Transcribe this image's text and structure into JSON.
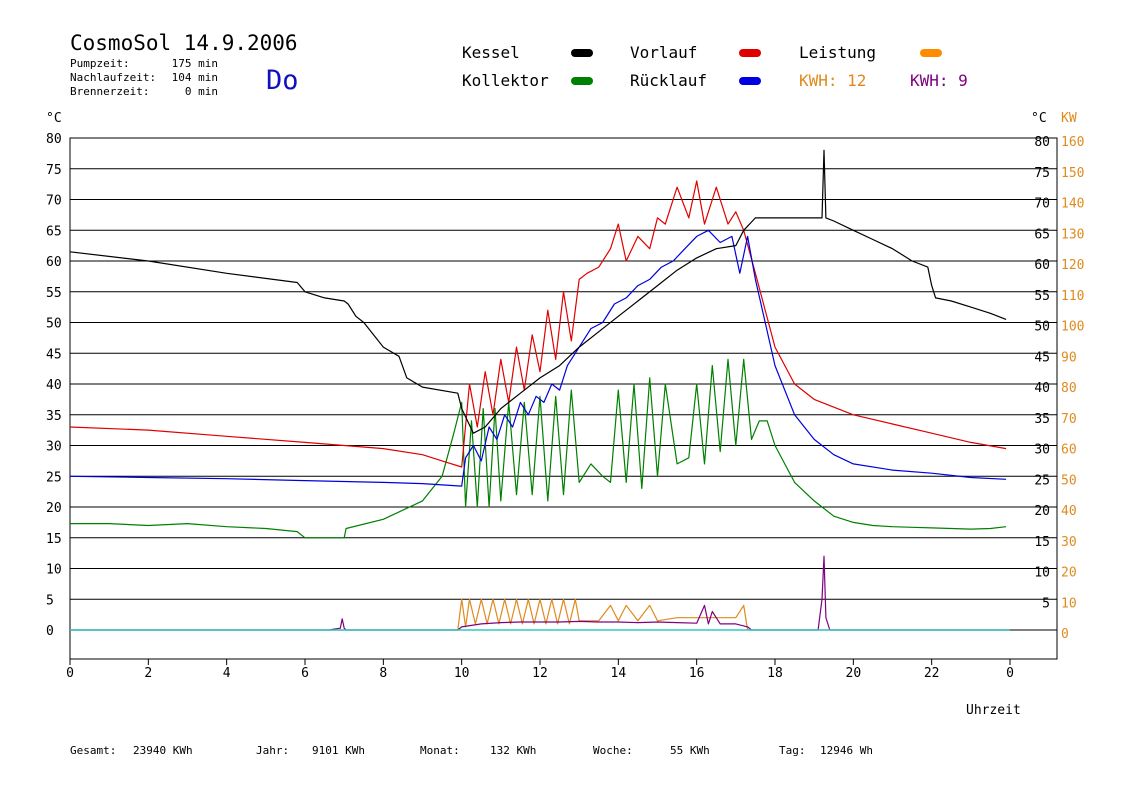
{
  "header": {
    "title": "CosmoSol 14.9.2006",
    "weekday": "Do",
    "runtimes": [
      {
        "label": "Pumpzeit:",
        "value": "175 min"
      },
      {
        "label": "Nachlaufzeit:",
        "value": "104 min"
      },
      {
        "label": "Brennerzeit:",
        "value": "0 min"
      }
    ]
  },
  "legend": {
    "items": [
      {
        "label": "Kessel",
        "color": "#000000"
      },
      {
        "label": "Vorlauf",
        "color": "#e00000"
      },
      {
        "label": "Leistung",
        "color": "#ff8c00"
      },
      {
        "label": "Kollektor",
        "color": "#008000"
      },
      {
        "label": "Rücklauf",
        "color": "#0000e0"
      }
    ],
    "kwh1": "KWH: 12",
    "kwh1_color": "#e08a1e",
    "kwh2": "KWH: 9",
    "kwh2_color": "#800080"
  },
  "axes": {
    "left_unit": "°C",
    "right_unit_c": "°C",
    "right_unit_kw": "KW",
    "xlabel": "Uhrzeit"
  },
  "footer": [
    {
      "label": "Gesamt:",
      "value": "23940 KWh"
    },
    {
      "label": "Jahr:",
      "value": "9101 KWh"
    },
    {
      "label": "Monat:",
      "value": "132 KWh"
    },
    {
      "label": "Woche:",
      "value": "55 KWh"
    },
    {
      "label": "Tag:",
      "value": "12946 Wh"
    }
  ],
  "chart_data": {
    "type": "line",
    "xlim": [
      0,
      24
    ],
    "ylim": [
      -5,
      85
    ],
    "x_ticks": [
      "0",
      "2",
      "4",
      "6",
      "8",
      "10",
      "12",
      "14",
      "16",
      "18",
      "20",
      "22",
      "0"
    ],
    "y_ticks": [
      "0",
      "5",
      "10",
      "15",
      "20",
      "25",
      "30",
      "35",
      "40",
      "45",
      "50",
      "55",
      "60",
      "65",
      "70",
      "75",
      "80"
    ],
    "right_c_ticks": [
      "5",
      "10",
      "15",
      "20",
      "25",
      "30",
      "35",
      "40",
      "45",
      "50",
      "55",
      "60",
      "65",
      "70",
      "75",
      "80"
    ],
    "right_kw_ticks": [
      "0",
      "10",
      "20",
      "30",
      "40",
      "50",
      "60",
      "70",
      "80",
      "90",
      "100",
      "110",
      "120",
      "130",
      "140",
      "150",
      "160"
    ],
    "grid": "horizontal",
    "series": [
      {
        "name": "Kessel",
        "color": "#000000",
        "x": [
          0,
          2,
          4,
          5.8,
          6,
          6.5,
          7,
          7.1,
          7.3,
          7.5,
          8,
          8.4,
          8.6,
          9,
          9.9,
          10,
          10.3,
          10.6,
          11,
          11.5,
          12,
          12.5,
          13,
          13.5,
          14,
          14.5,
          15,
          15.5,
          16,
          16.5,
          17,
          17.2,
          17.5,
          18,
          19,
          19.2,
          19.25,
          19.3,
          19.5,
          20,
          20.5,
          21,
          21.5,
          21.9,
          22,
          22.1,
          22.5,
          23,
          23.5,
          23.9
        ],
        "y": [
          61.5,
          60,
          58,
          56.5,
          55,
          54,
          53.5,
          53,
          51,
          50,
          46,
          44.5,
          41,
          39.5,
          38.5,
          36,
          32,
          33,
          36,
          38.5,
          41,
          43,
          46,
          48.5,
          51,
          53.5,
          56,
          58.5,
          60.5,
          62,
          62.5,
          65,
          67,
          67,
          67,
          67,
          78,
          67,
          66.5,
          65,
          63.5,
          62,
          60,
          59,
          56,
          54,
          53.5,
          52.5,
          51.5,
          50.5
        ]
      },
      {
        "name": "Vorlauf",
        "color": "#e00000",
        "x": [
          0,
          2,
          4,
          6,
          7,
          8,
          9,
          9.5,
          10,
          10.2,
          10.4,
          10.6,
          10.8,
          11,
          11.2,
          11.4,
          11.6,
          11.8,
          12,
          12.2,
          12.4,
          12.6,
          12.8,
          13,
          13.2,
          13.5,
          13.8,
          14,
          14.2,
          14.5,
          14.8,
          15,
          15.2,
          15.5,
          15.8,
          16,
          16.2,
          16.5,
          16.8,
          17,
          17.2,
          17.5,
          18,
          18.5,
          19,
          20,
          21,
          22,
          23,
          23.9
        ],
        "y": [
          33,
          32.5,
          31.5,
          30.5,
          30,
          29.5,
          28.5,
          27.5,
          26.5,
          40,
          33,
          42,
          35,
          44,
          37,
          46,
          39,
          48,
          42,
          52,
          44,
          55,
          47,
          57,
          58,
          59,
          62,
          66,
          60,
          64,
          62,
          67,
          66,
          72,
          67,
          73,
          66,
          72,
          66,
          68,
          65,
          58,
          46,
          40,
          37.5,
          35,
          33.5,
          32,
          30.5,
          29.5
        ]
      },
      {
        "name": "Rücklauf",
        "color": "#0000e0",
        "x": [
          0,
          2,
          4,
          6,
          8,
          9,
          10,
          10.1,
          10.3,
          10.5,
          10.7,
          10.9,
          11.1,
          11.3,
          11.5,
          11.7,
          11.9,
          12.1,
          12.3,
          12.5,
          12.7,
          13,
          13.3,
          13.6,
          13.9,
          14.2,
          14.5,
          14.8,
          15.1,
          15.4,
          15.7,
          16,
          16.3,
          16.6,
          16.9,
          17.1,
          17.3,
          17.5,
          18,
          18.5,
          19,
          19.5,
          20,
          21,
          22,
          23,
          23.9
        ],
        "y": [
          25,
          24.8,
          24.6,
          24.3,
          24,
          23.8,
          23.4,
          28,
          30,
          27.5,
          33,
          31,
          35,
          33,
          37,
          35,
          38,
          37,
          40,
          39,
          43,
          46,
          49,
          50,
          53,
          54,
          56,
          57,
          59,
          60,
          62,
          64,
          65,
          63,
          64,
          58,
          64,
          57,
          43,
          35,
          31,
          28.5,
          27,
          26,
          25.5,
          24.8,
          24.5
        ]
      },
      {
        "name": "Kollektor",
        "color": "#008000",
        "x": [
          0,
          1,
          2,
          3,
          4,
          5,
          5.8,
          6,
          6.5,
          7,
          7.05,
          8,
          9,
          9.5,
          9.8,
          10,
          10.1,
          10.25,
          10.4,
          10.55,
          10.7,
          10.85,
          11,
          11.2,
          11.4,
          11.6,
          11.8,
          12,
          12.2,
          12.4,
          12.6,
          12.8,
          13,
          13.3,
          13.6,
          13.8,
          14,
          14.2,
          14.4,
          14.6,
          14.8,
          15,
          15.2,
          15.5,
          15.8,
          16,
          16.2,
          16.4,
          16.6,
          16.8,
          17,
          17.2,
          17.4,
          17.6,
          17.8,
          18,
          18.5,
          19,
          19.5,
          20,
          20.5,
          21,
          21.5,
          22,
          22.5,
          23,
          23.5,
          23.9
        ],
        "y": [
          17.3,
          17.3,
          17.0,
          17.3,
          16.8,
          16.5,
          16,
          15,
          15,
          15,
          16.5,
          18,
          21,
          25,
          32,
          37,
          20,
          34,
          20,
          36,
          20,
          36,
          21,
          37,
          22,
          37,
          22,
          38,
          21,
          38,
          22,
          39,
          24,
          27,
          25,
          24,
          39,
          24,
          40,
          23,
          41,
          25,
          40,
          27,
          28,
          40,
          27,
          43,
          29,
          44,
          30,
          44,
          31,
          34,
          34,
          30,
          24,
          21,
          18.5,
          17.5,
          17,
          16.8,
          16.7,
          16.6,
          16.5,
          16.4,
          16.5,
          16.8
        ]
      },
      {
        "name": "Leistung",
        "color": "#e08a1e",
        "x": [
          0,
          9.9,
          10,
          10.1,
          10.2,
          10.35,
          10.5,
          10.65,
          10.8,
          10.95,
          11.1,
          11.25,
          11.4,
          11.55,
          11.7,
          11.85,
          12,
          12.15,
          12.3,
          12.45,
          12.6,
          12.75,
          12.9,
          13,
          13.5,
          13.8,
          14,
          14.2,
          14.5,
          14.8,
          15,
          15.5,
          16,
          16.5,
          17,
          17.2,
          17.3,
          24
        ],
        "y": [
          0,
          0,
          5,
          0.5,
          5,
          1,
          5,
          1,
          5,
          1,
          5,
          1,
          5,
          1,
          5,
          1,
          5,
          1,
          5,
          1,
          5,
          1,
          5,
          1.5,
          1.5,
          4,
          1.5,
          4,
          1.5,
          4,
          1.5,
          2,
          2,
          2,
          2,
          4,
          0,
          0
        ]
      },
      {
        "name": "",
        "color": "#800080",
        "x": [
          0,
          6.6,
          6.9,
          6.95,
          7.0,
          7.05,
          9.9,
          10,
          10.5,
          11,
          11.5,
          12,
          12.5,
          13,
          13.5,
          14,
          14.5,
          15,
          15.5,
          16,
          16.2,
          16.3,
          16.4,
          16.6,
          17,
          17.3,
          17.4,
          19.1,
          19.2,
          19.25,
          19.3,
          19.4,
          24
        ],
        "y": [
          0,
          0,
          0.3,
          1.8,
          0.3,
          0,
          0,
          0.5,
          1.0,
          1.2,
          1.3,
          1.3,
          1.3,
          1.4,
          1.3,
          1.3,
          1.2,
          1.3,
          1.2,
          1.1,
          4,
          1,
          3,
          1,
          1,
          0.5,
          0,
          0,
          5,
          12,
          2,
          0,
          0
        ]
      }
    ]
  }
}
